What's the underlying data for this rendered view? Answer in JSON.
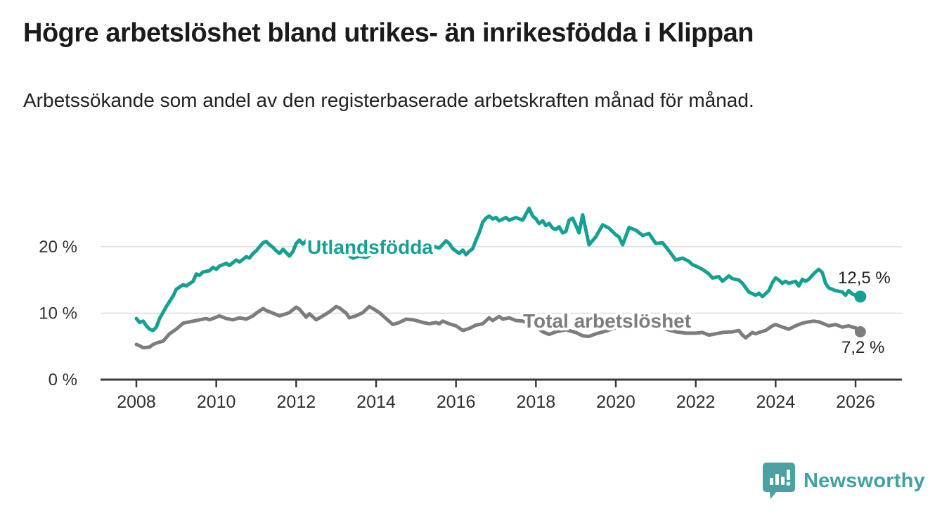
{
  "header": {
    "title": "Högre arbetslöshet bland utrikes- än inrikesfödda i Klippan",
    "subtitle": "Arbetssökande som andel av den registerbaserade arbetskraften månad för månad."
  },
  "chart_data": {
    "type": "line",
    "title": "Högre arbetslöshet bland utrikes- än inrikesfödda i Klippan",
    "xlabel": "",
    "ylabel": "Arbetssökande som andel av den registerbaserade arbetskraften",
    "x_axis": {
      "range": [
        2007.1,
        2027.2
      ],
      "ticks": [
        2008,
        2010,
        2012,
        2014,
        2016,
        2018,
        2020,
        2022,
        2024,
        2026
      ],
      "tick_labels": [
        "2008",
        "2010",
        "2012",
        "2014",
        "2016",
        "2018",
        "2020",
        "2022",
        "2024",
        "2026"
      ]
    },
    "y_axis": {
      "range": [
        0,
        28
      ],
      "ticks": [
        0,
        10,
        20
      ],
      "tick_labels": [
        "0 %",
        "10 %",
        "20 %"
      ],
      "grid": true
    },
    "series": [
      {
        "name": "Utlandsfödda",
        "color": "#15a192",
        "end_label": "12,5 %",
        "end_value": 12.5,
        "x": [
          2008.0,
          2008.08,
          2008.17,
          2008.25,
          2008.33,
          2008.42,
          2008.5,
          2008.58,
          2008.75,
          2008.92,
          2009.0,
          2009.17,
          2009.25,
          2009.42,
          2009.5,
          2009.58,
          2009.67,
          2009.83,
          2009.92,
          2010.0,
          2010.08,
          2010.25,
          2010.33,
          2010.5,
          2010.58,
          2010.75,
          2010.83,
          2010.92,
          2011.0,
          2011.17,
          2011.25,
          2011.33,
          2011.42,
          2011.5,
          2011.58,
          2011.67,
          2011.83,
          2011.92,
          2012.0,
          2012.08,
          2012.17,
          2012.25,
          2012.33,
          2012.42,
          2012.58,
          2012.75,
          2012.92,
          2013.08,
          2013.25,
          2013.42,
          2013.58,
          2013.75,
          2013.92,
          2014.08,
          2014.25,
          2014.42,
          2014.58,
          2014.75,
          2014.92,
          2015.08,
          2015.25,
          2015.42,
          2015.58,
          2015.75,
          2015.83,
          2015.92,
          2016.08,
          2016.17,
          2016.25,
          2016.33,
          2016.42,
          2016.5,
          2016.58,
          2016.67,
          2016.75,
          2016.83,
          2016.92,
          2017.0,
          2017.08,
          2017.25,
          2017.33,
          2017.5,
          2017.67,
          2017.83,
          2017.92,
          2018.0,
          2018.08,
          2018.17,
          2018.25,
          2018.33,
          2018.42,
          2018.5,
          2018.58,
          2018.67,
          2018.75,
          2018.83,
          2018.92,
          2019.0,
          2019.08,
          2019.17,
          2019.33,
          2019.5,
          2019.67,
          2019.83,
          2020.0,
          2020.08,
          2020.17,
          2020.33,
          2020.5,
          2020.67,
          2020.83,
          2021.0,
          2021.17,
          2021.33,
          2021.5,
          2021.67,
          2021.83,
          2021.92,
          2022.0,
          2022.17,
          2022.33,
          2022.42,
          2022.58,
          2022.67,
          2022.83,
          2022.92,
          2023.08,
          2023.17,
          2023.33,
          2023.5,
          2023.58,
          2023.67,
          2023.83,
          2023.92,
          2024.0,
          2024.08,
          2024.17,
          2024.25,
          2024.33,
          2024.5,
          2024.58,
          2024.67,
          2024.75,
          2024.83,
          2024.92,
          2025.0,
          2025.08,
          2025.17,
          2025.25,
          2025.33,
          2025.5,
          2025.67,
          2025.75,
          2025.83,
          2025.92,
          2026.0,
          2026.12
        ],
        "values": [
          9.2,
          8.6,
          8.8,
          8.1,
          7.6,
          7.4,
          7.9,
          9.2,
          11.0,
          12.6,
          13.6,
          14.3,
          14.1,
          14.8,
          15.9,
          15.7,
          16.2,
          16.4,
          16.9,
          16.6,
          17.1,
          17.5,
          17.2,
          18.0,
          17.7,
          18.5,
          18.3,
          19.0,
          19.4,
          20.6,
          20.8,
          20.3,
          19.9,
          19.4,
          19.0,
          19.6,
          18.6,
          19.3,
          20.5,
          21.0,
          20.4,
          20.9,
          19.8,
          19.4,
          19.0,
          19.5,
          19.2,
          19.8,
          18.9,
          18.3,
          18.6,
          18.4,
          19.0,
          19.4,
          19.0,
          19.5,
          19.2,
          19.8,
          19.5,
          20.0,
          19.6,
          20.1,
          19.8,
          20.9,
          20.5,
          19.7,
          19.0,
          19.5,
          18.8,
          19.3,
          19.7,
          21.0,
          22.1,
          23.7,
          24.3,
          24.6,
          24.2,
          24.4,
          23.9,
          24.4,
          24.0,
          24.4,
          24.0,
          25.8,
          24.6,
          24.2,
          23.5,
          23.9,
          23.2,
          23.5,
          22.8,
          22.6,
          23.0,
          22.1,
          22.3,
          24.0,
          24.3,
          23.2,
          22.1,
          24.8,
          20.3,
          21.5,
          23.3,
          22.8,
          21.8,
          21.5,
          20.3,
          22.9,
          22.5,
          21.7,
          22.0,
          20.5,
          20.6,
          19.4,
          18.0,
          18.3,
          17.8,
          17.3,
          17.1,
          16.6,
          15.9,
          15.3,
          15.5,
          14.8,
          15.6,
          15.2,
          15.0,
          14.5,
          13.2,
          12.7,
          13.0,
          12.5,
          13.4,
          14.6,
          15.3,
          15.0,
          14.5,
          14.8,
          14.5,
          14.8,
          14.1,
          15.1,
          14.8,
          15.1,
          15.7,
          16.2,
          16.6,
          16.1,
          14.5,
          13.8,
          13.4,
          13.2,
          12.7,
          13.4,
          12.9,
          12.7,
          12.5
        ]
      },
      {
        "name": "Total arbetslöshet",
        "color": "#7d7d7d",
        "end_label": "7,2 %",
        "end_value": 7.2,
        "x": [
          2008.0,
          2008.08,
          2008.17,
          2008.33,
          2008.42,
          2008.5,
          2008.67,
          2008.83,
          2009.0,
          2009.17,
          2009.25,
          2009.42,
          2009.58,
          2009.75,
          2009.83,
          2010.0,
          2010.08,
          2010.25,
          2010.42,
          2010.58,
          2010.75,
          2010.92,
          2011.0,
          2011.17,
          2011.25,
          2011.42,
          2011.58,
          2011.75,
          2011.83,
          2012.0,
          2012.08,
          2012.25,
          2012.33,
          2012.5,
          2012.67,
          2012.83,
          2012.92,
          2013.0,
          2013.08,
          2013.25,
          2013.33,
          2013.5,
          2013.67,
          2013.83,
          2013.92,
          2014.08,
          2014.25,
          2014.42,
          2014.58,
          2014.75,
          2014.92,
          2015.0,
          2015.17,
          2015.33,
          2015.5,
          2015.58,
          2015.67,
          2015.83,
          2016.0,
          2016.17,
          2016.33,
          2016.5,
          2016.67,
          2016.83,
          2016.92,
          2017.08,
          2017.17,
          2017.33,
          2017.5,
          2017.67,
          2017.83,
          2018.0,
          2018.17,
          2018.33,
          2018.5,
          2018.75,
          2019.0,
          2019.17,
          2019.33,
          2019.5,
          2019.75,
          2020.0,
          2020.25,
          2020.42,
          2020.58,
          2020.83,
          2021.0,
          2021.25,
          2021.5,
          2021.75,
          2022.0,
          2022.17,
          2022.33,
          2022.5,
          2022.67,
          2022.92,
          2023.08,
          2023.17,
          2023.25,
          2023.42,
          2023.5,
          2023.58,
          2023.75,
          2023.92,
          2024.0,
          2024.17,
          2024.33,
          2024.5,
          2024.67,
          2024.83,
          2024.95,
          2025.08,
          2025.17,
          2025.33,
          2025.5,
          2025.67,
          2025.83,
          2025.92,
          2026.0,
          2026.12
        ],
        "values": [
          5.3,
          5.1,
          4.8,
          4.9,
          5.3,
          5.5,
          5.8,
          6.9,
          7.6,
          8.5,
          8.6,
          8.8,
          9.0,
          9.2,
          9.0,
          9.4,
          9.6,
          9.2,
          9.0,
          9.3,
          9.1,
          9.6,
          10.0,
          10.7,
          10.4,
          10.0,
          9.6,
          9.9,
          10.1,
          10.9,
          10.6,
          9.4,
          9.9,
          9.0,
          9.6,
          10.2,
          10.6,
          11.0,
          10.8,
          10.0,
          9.3,
          9.6,
          10.1,
          11.0,
          10.7,
          10.1,
          9.2,
          8.3,
          8.6,
          9.1,
          9.0,
          8.9,
          8.6,
          8.4,
          8.6,
          8.4,
          8.8,
          8.4,
          8.1,
          7.4,
          7.7,
          8.2,
          8.4,
          9.3,
          8.9,
          9.5,
          9.1,
          9.3,
          8.9,
          8.8,
          8.4,
          8.0,
          7.2,
          6.8,
          7.2,
          7.5,
          7.1,
          6.6,
          6.5,
          6.9,
          7.3,
          7.8,
          8.8,
          9.2,
          9.0,
          8.4,
          8.0,
          7.6,
          7.2,
          7.0,
          7.0,
          7.1,
          6.7,
          6.9,
          7.1,
          7.2,
          7.4,
          6.7,
          6.3,
          7.1,
          6.9,
          7.1,
          7.4,
          8.1,
          8.3,
          7.9,
          7.6,
          8.1,
          8.5,
          8.7,
          8.8,
          8.7,
          8.5,
          8.1,
          8.3,
          7.9,
          8.1,
          7.9,
          7.8,
          7.2
        ]
      }
    ],
    "legend_position": "inline-labels"
  },
  "footer": {
    "brand": "Newsworthy",
    "logo_icon": "bar-chart-speech-bubble-icon",
    "brand_color": "#44a1a1"
  },
  "colors": {
    "utlandsfodda": "#15a192",
    "total": "#7d7d7d",
    "grid": "#dadada",
    "axis": "#3b3b3b"
  }
}
